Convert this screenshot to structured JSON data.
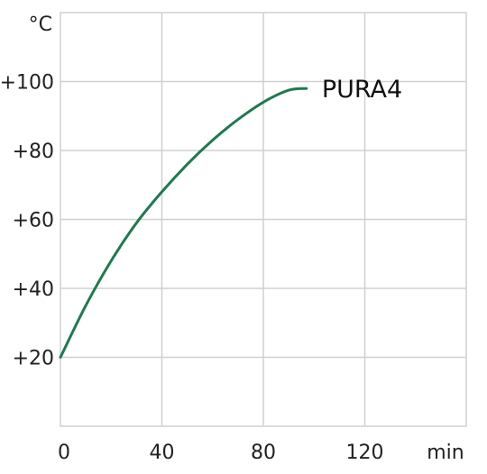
{
  "chart_data": {
    "type": "line",
    "title": "",
    "xlabel": "min",
    "ylabel": "°C",
    "x_ticks": [
      "0",
      "40",
      "80",
      "120"
    ],
    "y_ticks": [
      "+20",
      "+40",
      "+60",
      "+80",
      "+100"
    ],
    "xlim": [
      0,
      160
    ],
    "ylim": [
      0,
      120
    ],
    "grid": true,
    "series": [
      {
        "name": "PURA4",
        "color": "#1e7a4f",
        "x": [
          0,
          10,
          20,
          30,
          40,
          50,
          60,
          70,
          80,
          90,
          97
        ],
        "y": [
          20,
          35,
          48,
          59,
          68,
          76,
          83,
          89,
          94,
          97.5,
          98
        ]
      }
    ]
  }
}
